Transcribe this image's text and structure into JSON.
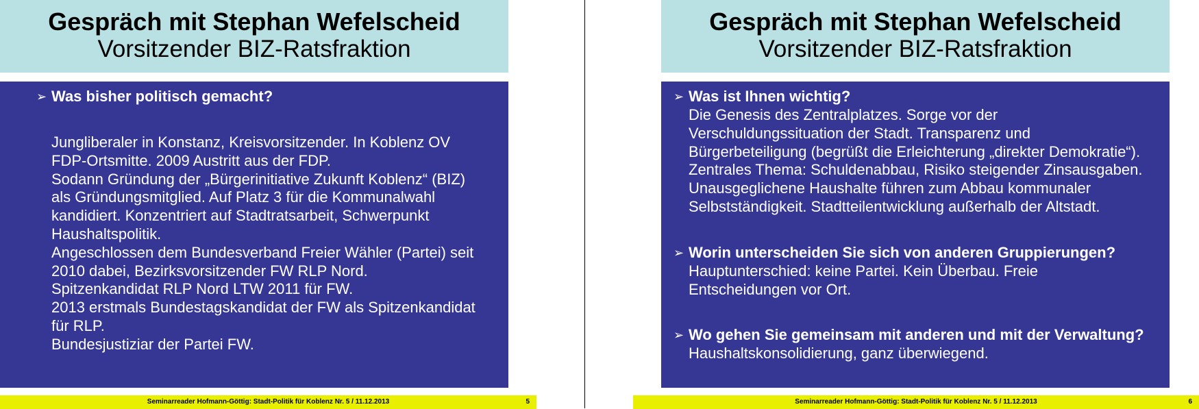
{
  "slides": [
    {
      "title": "Gespräch mit Stephan Wefelscheid",
      "subtitle": "Vorsitzender BIZ-Ratsfraktion",
      "sections": [
        {
          "question": "Was bisher politisch gemacht?",
          "lines": [
            "Jungliberaler in Konstanz, Kreisvorsitzender. In Koblenz OV",
            "FDP-Ortsmitte. 2009 Austritt aus der FDP.",
            "Sodann Gründung der „Bürgerinitiative Zukunft Koblenz“ (BIZ)",
            "als Gründungsmitglied. Auf Platz 3 für die Kommunalwahl",
            "kandidiert. Konzentriert auf Stadtratsarbeit, Schwerpunkt",
            "Haushaltspolitik.",
            "Angeschlossen dem Bundesverband Freier Wähler (Partei) seit",
            "2010 dabei, Bezirksvorsitzender FW RLP Nord.",
            "Spitzenkandidat RLP Nord LTW 2011 für FW.",
            "2013 erstmals Bundestagskandidat der FW als Spitzenkandidat",
            "für RLP.",
            "Bundesjustiziar der Partei FW."
          ]
        }
      ],
      "footer": "Seminarreader Hofmann-Göttig: Stadt-Politik für Koblenz Nr. 5 / 11.12.2013",
      "page": "5"
    },
    {
      "title": "Gespräch mit Stephan Wefelscheid",
      "subtitle": "Vorsitzender BIZ-Ratsfraktion",
      "sections": [
        {
          "question": "Was ist Ihnen wichtig?",
          "lines": [
            "Die Genesis des Zentralplatzes. Sorge vor der",
            "Verschuldungssituation der Stadt. Transparenz und",
            "Bürgerbeteiligung (begrüßt die Erleichterung „direkter Demokratie“).",
            "Zentrales Thema: Schuldenabbau, Risiko steigender Zinsausgaben.",
            "Unausgeglichene Haushalte führen zum Abbau kommunaler",
            "Selbstständigkeit. Stadtteilentwicklung außerhalb der Altstadt."
          ]
        },
        {
          "question": " Worin unterscheiden Sie sich von anderen Gruppierungen?",
          "lines": [
            "Hauptunterschied: keine Partei. Kein Überbau. Freie",
            "Entscheidungen vor Ort."
          ]
        },
        {
          "question": "Wo gehen Sie gemeinsam mit anderen und mit der Verwaltung?",
          "lines": [
            "Haushaltskonsolidierung, ganz überwiegend."
          ]
        }
      ],
      "footer": "Seminarreader Hofmann-Göttig: Stadt-Politik für Koblenz Nr. 5 / 11.12.2013",
      "page": "6"
    }
  ],
  "colors": {
    "title_bg": "#b9e0e3",
    "body_bg": "#363795",
    "footer_bg": "#e8f000"
  }
}
